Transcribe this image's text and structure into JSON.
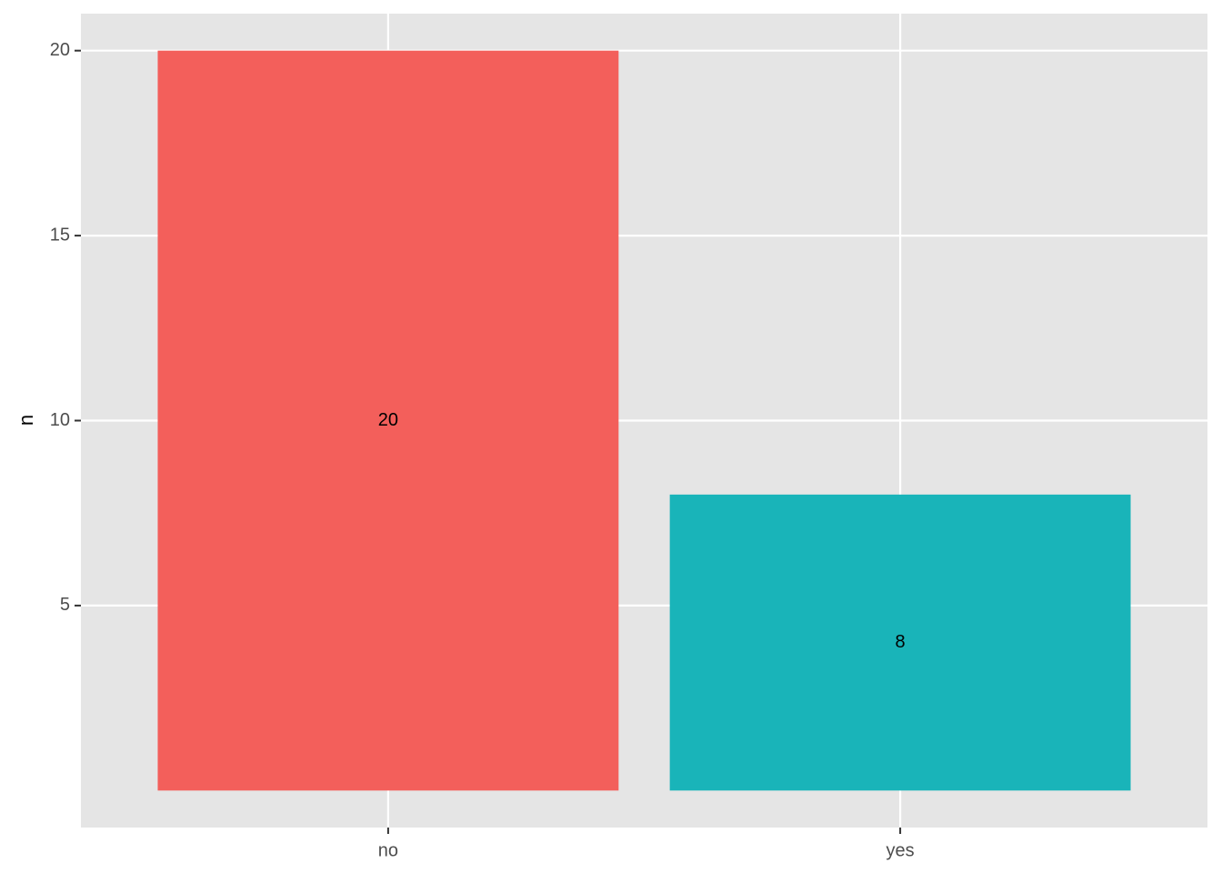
{
  "chart_data": {
    "type": "bar",
    "y_label": "n",
    "categories": [
      "no",
      "yes"
    ],
    "values": [
      20,
      8
    ],
    "colors": [
      "#f35f5b",
      "#19b4b9"
    ],
    "ylim": [
      -1,
      21
    ],
    "yticks": [
      5,
      10,
      15,
      20
    ],
    "grid": true
  }
}
